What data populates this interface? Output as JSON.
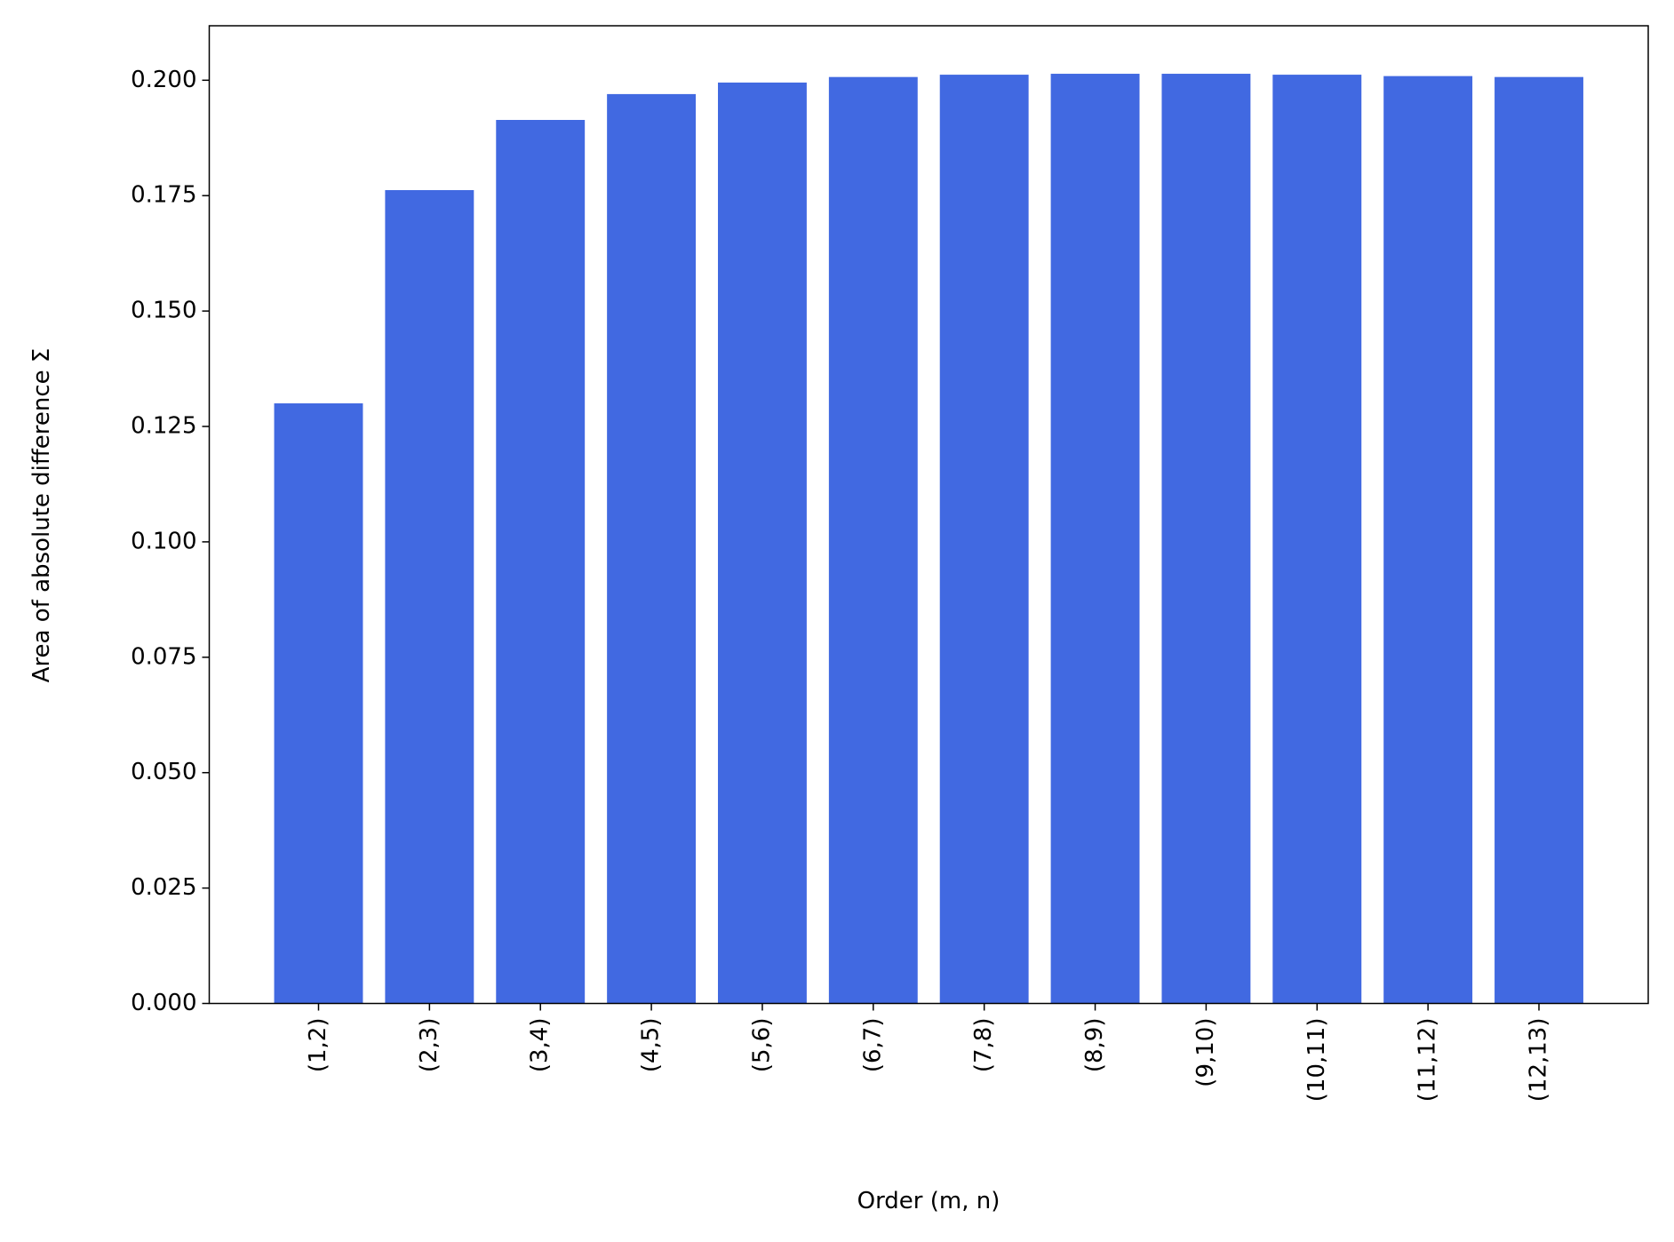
{
  "chart_data": {
    "type": "bar",
    "xlabel": "Order (m, n)",
    "ylabel": "Area of absolute difference Σ",
    "categories": [
      "(1,2)",
      "(2,3)",
      "(3,4)",
      "(4,5)",
      "(5,6)",
      "(6,7)",
      "(7,8)",
      "(8,9)",
      "(9,10)",
      "(10,11)",
      "(11,12)",
      "(12,13)"
    ],
    "values": [
      0.13,
      0.1762,
      0.1914,
      0.197,
      0.1995,
      0.2007,
      0.2012,
      0.2014,
      0.2014,
      0.2012,
      0.2009,
      0.2007
    ],
    "color": "#4169e1",
    "ylim": [
      0,
      0.2118
    ],
    "yticks": [
      {
        "value": 0,
        "label": "0.000"
      },
      {
        "value": 0.025,
        "label": "0.025"
      },
      {
        "value": 0.05,
        "label": "0.050"
      },
      {
        "value": 0.075,
        "label": "0.075"
      },
      {
        "value": 0.1,
        "label": "0.100"
      },
      {
        "value": 0.125,
        "label": "0.125"
      },
      {
        "value": 0.15,
        "label": "0.150"
      },
      {
        "value": 0.175,
        "label": "0.175"
      },
      {
        "value": 0.2,
        "label": "0.200"
      }
    ],
    "grid": false
  }
}
